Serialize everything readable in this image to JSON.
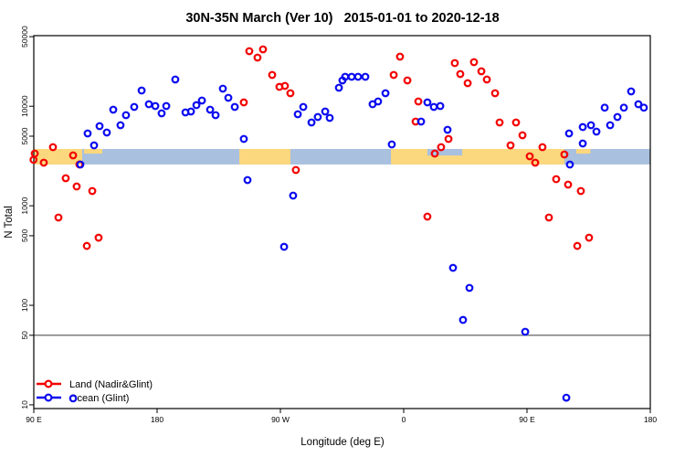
{
  "title": "30N-35N March (Ver 10)   2015-01-01 to 2020-12-18",
  "chart_data": {
    "type": "scatter",
    "title": "30N-35N March (Ver 10)  2015-01-01 to 2020-12-18",
    "xlabel": "Longitude (deg E)",
    "ylabel": "N Total",
    "y_scale": "log10",
    "ylim": [
      10,
      50000
    ],
    "y_ticks": [
      50000,
      10000,
      5000,
      1000,
      500,
      100,
      50,
      10
    ],
    "x_axis_span_deg": [
      90,
      540
    ],
    "x_ticks": [
      {
        "deg": 90,
        "label": "90 E"
      },
      {
        "deg": 180,
        "label": "180"
      },
      {
        "deg": 270,
        "label": "90 W"
      },
      {
        "deg": 360,
        "label": "0"
      },
      {
        "deg": 450,
        "label": "90 E"
      },
      {
        "deg": 540,
        "label": "180"
      }
    ],
    "gridlines": {
      "h_values": [
        50
      ],
      "color": "#7d7d7d"
    },
    "frame_color": "#000000",
    "bands": {
      "n_low": 2600,
      "n_high": 3720,
      "ocean_color": "#a9c0df",
      "land_color": "#fbd77d",
      "ocean_extent_deg": [
        90,
        540
      ],
      "land_segments_deg": [
        [
          90,
          125.3
        ],
        [
          240,
          277.3
        ],
        [
          350.7,
          477.3
        ]
      ],
      "land_top_slivers_deg": [
        [
          126.7,
          140
        ],
        [
          486,
          496.3
        ]
      ],
      "ocean_notch_deg": [
        377.3,
        402.7
      ]
    },
    "legend_position": "bottom-left",
    "series": [
      {
        "name": "Land (Nadir&Glint)",
        "color": "#f30000",
        "marker": "open-circle",
        "points": [
          [
            89.8,
            2900
          ],
          [
            90.7,
            3346
          ],
          [
            97.3,
            2709
          ],
          [
            104,
            3881
          ],
          [
            118.7,
            3208
          ],
          [
            123.3,
            2600
          ],
          [
            113.3,
            1891
          ],
          [
            121.3,
            1563
          ],
          [
            132.7,
            1407
          ],
          [
            108,
            762
          ],
          [
            128.7,
            395
          ],
          [
            137.3,
            478
          ],
          [
            247.3,
            35740
          ],
          [
            257.3,
            37280
          ],
          [
            253.3,
            30820
          ],
          [
            264,
            20620
          ],
          [
            269.3,
            15660
          ],
          [
            273.3,
            16000
          ],
          [
            277.3,
            13510
          ],
          [
            243.3,
            10930
          ],
          [
            281.3,
            2288
          ],
          [
            357.3,
            31480
          ],
          [
            352.7,
            20620
          ],
          [
            362.7,
            18170
          ],
          [
            370.7,
            11170
          ],
          [
            368.7,
            7015
          ],
          [
            392.7,
            4693
          ],
          [
            387.3,
            3881
          ],
          [
            382.7,
            3346
          ],
          [
            377.3,
            778
          ],
          [
            397.3,
            27140
          ],
          [
            411.3,
            27730
          ],
          [
            416.7,
            22440
          ],
          [
            401.3,
            21060
          ],
          [
            406.7,
            17050
          ],
          [
            420.7,
            18560
          ],
          [
            426.7,
            13510
          ],
          [
            430,
            6868
          ],
          [
            442,
            6868
          ],
          [
            446.7,
            5110
          ],
          [
            438,
            4047
          ],
          [
            452,
            3142
          ],
          [
            456,
            2709
          ],
          [
            461.3,
            3881
          ],
          [
            477.3,
            3277
          ],
          [
            471.3,
            1851
          ],
          [
            480,
            1631
          ],
          [
            489.3,
            1407
          ],
          [
            466,
            762
          ],
          [
            486.7,
            395
          ],
          [
            495.3,
            478
          ]
        ]
      },
      {
        "name": "Ocean (Glint)",
        "color": "#0b0bf0",
        "marker": "open-circle",
        "points": [
          [
            193.3,
            18560
          ],
          [
            168.7,
            14390
          ],
          [
            148,
            9234
          ],
          [
            163.3,
            9838
          ],
          [
            174,
            10480
          ],
          [
            178.7,
            10050
          ],
          [
            186.7,
            10050
          ],
          [
            183.3,
            8485
          ],
          [
            200.7,
            8666
          ],
          [
            157.3,
            8135
          ],
          [
            153.3,
            6447
          ],
          [
            138,
            6311
          ],
          [
            143.3,
            5443
          ],
          [
            129.3,
            5329
          ],
          [
            134,
            4047
          ],
          [
            124,
            2597
          ],
          [
            228,
            15020
          ],
          [
            232,
            12160
          ],
          [
            236.7,
            9838
          ],
          [
            208.7,
            10260
          ],
          [
            212.7,
            11410
          ],
          [
            204.7,
            8851
          ],
          [
            218.7,
            9234
          ],
          [
            222.7,
            8135
          ],
          [
            243.3,
            4693
          ],
          [
            246,
            1813
          ],
          [
            282.7,
            8309
          ],
          [
            286.7,
            9838
          ],
          [
            292.7,
            6868
          ],
          [
            297.3,
            7797
          ],
          [
            302.7,
            8851
          ],
          [
            306,
            7633
          ],
          [
            279.3,
            1265
          ],
          [
            272.7,
            387
          ],
          [
            312.7,
            15340
          ],
          [
            315.3,
            18170
          ],
          [
            317.3,
            19770
          ],
          [
            322,
            19770
          ],
          [
            326.7,
            19770
          ],
          [
            332,
            19770
          ],
          [
            337.3,
            10480
          ],
          [
            341.3,
            11170
          ],
          [
            346.7,
            13510
          ],
          [
            351.3,
            4134
          ],
          [
            372.7,
            7015
          ],
          [
            377.3,
            10930
          ],
          [
            382,
            9838
          ],
          [
            386.7,
            10050
          ],
          [
            392,
            5800
          ],
          [
            480.7,
            5329
          ],
          [
            490.7,
            6177
          ],
          [
            490.7,
            4223
          ],
          [
            496.7,
            6447
          ],
          [
            500.7,
            5559
          ],
          [
            506.7,
            9682
          ],
          [
            510.7,
            6447
          ],
          [
            516,
            7797
          ],
          [
            520.7,
            9682
          ],
          [
            526,
            14093
          ],
          [
            531.3,
            10480
          ],
          [
            535.3,
            9682
          ],
          [
            481.3,
            2597
          ],
          [
            118.7,
            11.6
          ],
          [
            396,
            238
          ],
          [
            408,
            149.6
          ],
          [
            403.3,
            71.3
          ],
          [
            448.7,
            54.2
          ],
          [
            478.7,
            11.8
          ]
        ]
      }
    ]
  },
  "legend": {
    "land_label": "Land (Nadir&Glint)",
    "ocean_label": "Ocean (Glint)"
  }
}
